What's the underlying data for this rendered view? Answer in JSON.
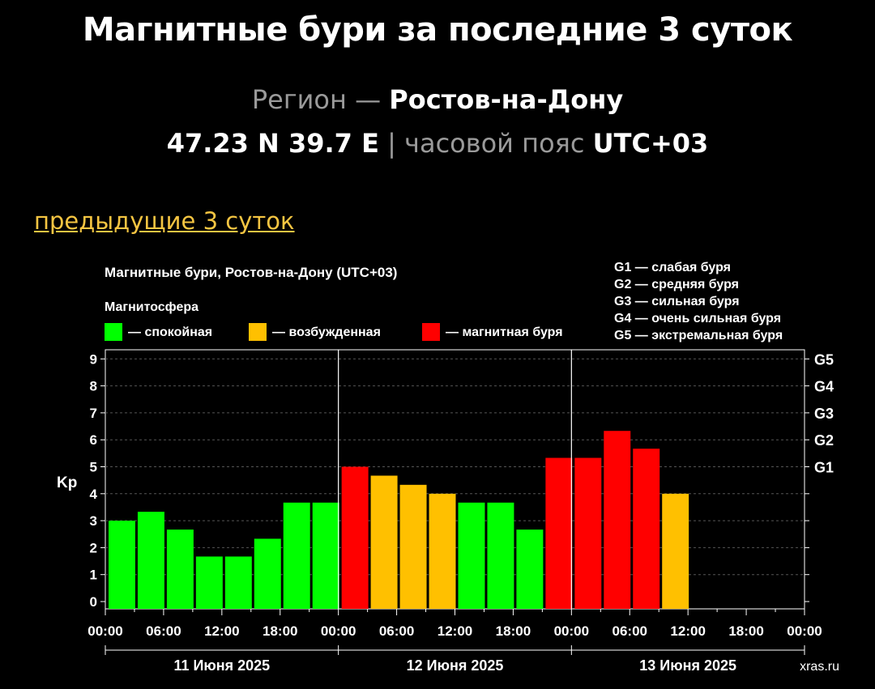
{
  "page": {
    "title": "Магнитные бури за последние 3 суток",
    "region_label": "Регион",
    "region_sep": "—",
    "region_name": "Ростов-на-Дону",
    "coords": "47.23 N 39.7 E",
    "coords_sep": "|",
    "tz_label": "часовой пояс",
    "tz_value": "UTC+03",
    "prev_link": "предыдущие 3 суток"
  },
  "chart_data": {
    "type": "bar",
    "title": "Магнитные бури, Ростов-на-Дону (UTC+03)",
    "legend_title": "Магнитосфера",
    "legend": [
      {
        "name": "— спокойная",
        "color": "#00ff00"
      },
      {
        "name": "— возбужденная",
        "color": "#ffc000"
      },
      {
        "name": "— магнитная буря",
        "color": "#ff0000"
      }
    ],
    "g_legend": [
      "G1 — слабая буря",
      "G2 — средняя буря",
      "G3 — сильная буря",
      "G4 — очень сильная буря",
      "G5 — экстремальная буря"
    ],
    "ylabel": "Kp",
    "ylim": [
      0,
      9
    ],
    "y_ticks": [
      "0",
      "1",
      "2",
      "3",
      "4",
      "5",
      "6",
      "7",
      "8",
      "9"
    ],
    "g_levels": [
      {
        "label": "G1",
        "kp": 5
      },
      {
        "label": "G2",
        "kp": 6
      },
      {
        "label": "G3",
        "kp": 7
      },
      {
        "label": "G4",
        "kp": 8
      },
      {
        "label": "G5",
        "kp": 9
      }
    ],
    "x_tick_labels": [
      "00:00",
      "06:00",
      "12:00",
      "18:00",
      "00:00",
      "06:00",
      "12:00",
      "18:00",
      "00:00",
      "06:00",
      "12:00",
      "18:00",
      "00:00"
    ],
    "days": [
      "11 Июня 2025",
      "12 Июня 2025",
      "13 Июня 2025"
    ],
    "intervals_per_day": 8,
    "values": [
      3.0,
      3.33,
      2.67,
      1.67,
      1.67,
      2.33,
      3.67,
      3.67,
      5.0,
      4.67,
      4.33,
      4.0,
      3.67,
      3.67,
      2.67,
      5.33,
      5.33,
      6.33,
      5.67,
      4.0
    ],
    "colors": [
      "#00ff00",
      "#00ff00",
      "#00ff00",
      "#00ff00",
      "#00ff00",
      "#00ff00",
      "#00ff00",
      "#00ff00",
      "#ff0000",
      "#ffc000",
      "#ffc000",
      "#ffc000",
      "#00ff00",
      "#00ff00",
      "#00ff00",
      "#ff0000",
      "#ff0000",
      "#ff0000",
      "#ff0000",
      "#ffc000"
    ],
    "grid": true,
    "watermark": "xras.ru"
  }
}
